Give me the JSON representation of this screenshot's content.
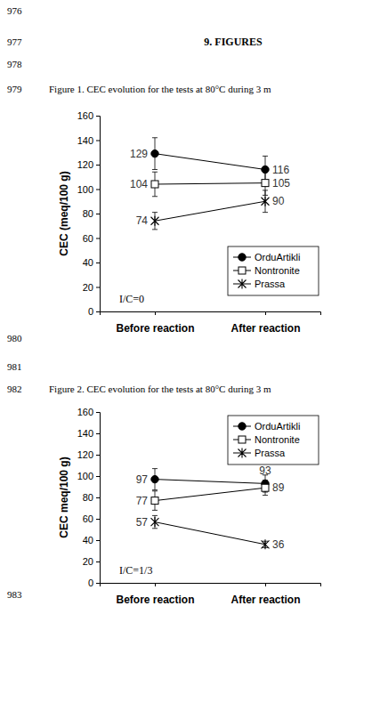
{
  "page": {
    "line_numbers": [
      "976",
      "977",
      "978",
      "979",
      "980",
      "981",
      "982",
      "983"
    ],
    "heading": "9. FIGURES"
  },
  "chart_data": [
    {
      "type": "line",
      "title": "Figure 1. CEC evolution for the tests at 80°C during 3 m",
      "categories": [
        "Before reaction",
        "After reaction"
      ],
      "y_label": "CEC (meq/100 g)",
      "annotations": [
        "I/C=0"
      ],
      "ylim": [
        0,
        160
      ],
      "yticks": [
        0,
        20,
        40,
        60,
        80,
        100,
        120,
        140,
        160
      ],
      "legend": "lower right",
      "data_labels": true,
      "series": [
        {
          "name": "OrduArtikli",
          "color": "#000000",
          "marker": "circle",
          "values": [
            129,
            116
          ],
          "errors": [
            13,
            11
          ]
        },
        {
          "name": "Nontronite",
          "color": "#000000",
          "marker": "square-open",
          "values": [
            104,
            105
          ],
          "errors": [
            10,
            10
          ]
        },
        {
          "name": "Prassa",
          "color": "#000000",
          "marker": "asterisk",
          "values": [
            74,
            90
          ],
          "errors": [
            7,
            9
          ]
        }
      ]
    },
    {
      "type": "line",
      "title": "Figure 2. CEC evolution for the tests at 80°C during 3 m",
      "categories": [
        "Before reaction",
        "After reaction"
      ],
      "y_label": "CEC meq/100 g)",
      "annotations": [
        "I/C=1/3"
      ],
      "ylim": [
        0,
        160
      ],
      "yticks": [
        0,
        20,
        40,
        60,
        80,
        100,
        120,
        140,
        160
      ],
      "legend": "upper right",
      "data_labels": true,
      "series": [
        {
          "name": "OrduArtikli",
          "color": "#000000",
          "marker": "circle",
          "values": [
            97,
            93
          ],
          "errors": [
            10,
            8
          ]
        },
        {
          "name": "Nontronite",
          "color": "#000000",
          "marker": "square-open",
          "values": [
            77,
            89
          ],
          "errors": [
            9,
            7
          ]
        },
        {
          "name": "Prassa",
          "color": "#000000",
          "marker": "asterisk",
          "values": [
            57,
            36
          ],
          "errors": [
            6,
            3
          ]
        }
      ]
    }
  ]
}
